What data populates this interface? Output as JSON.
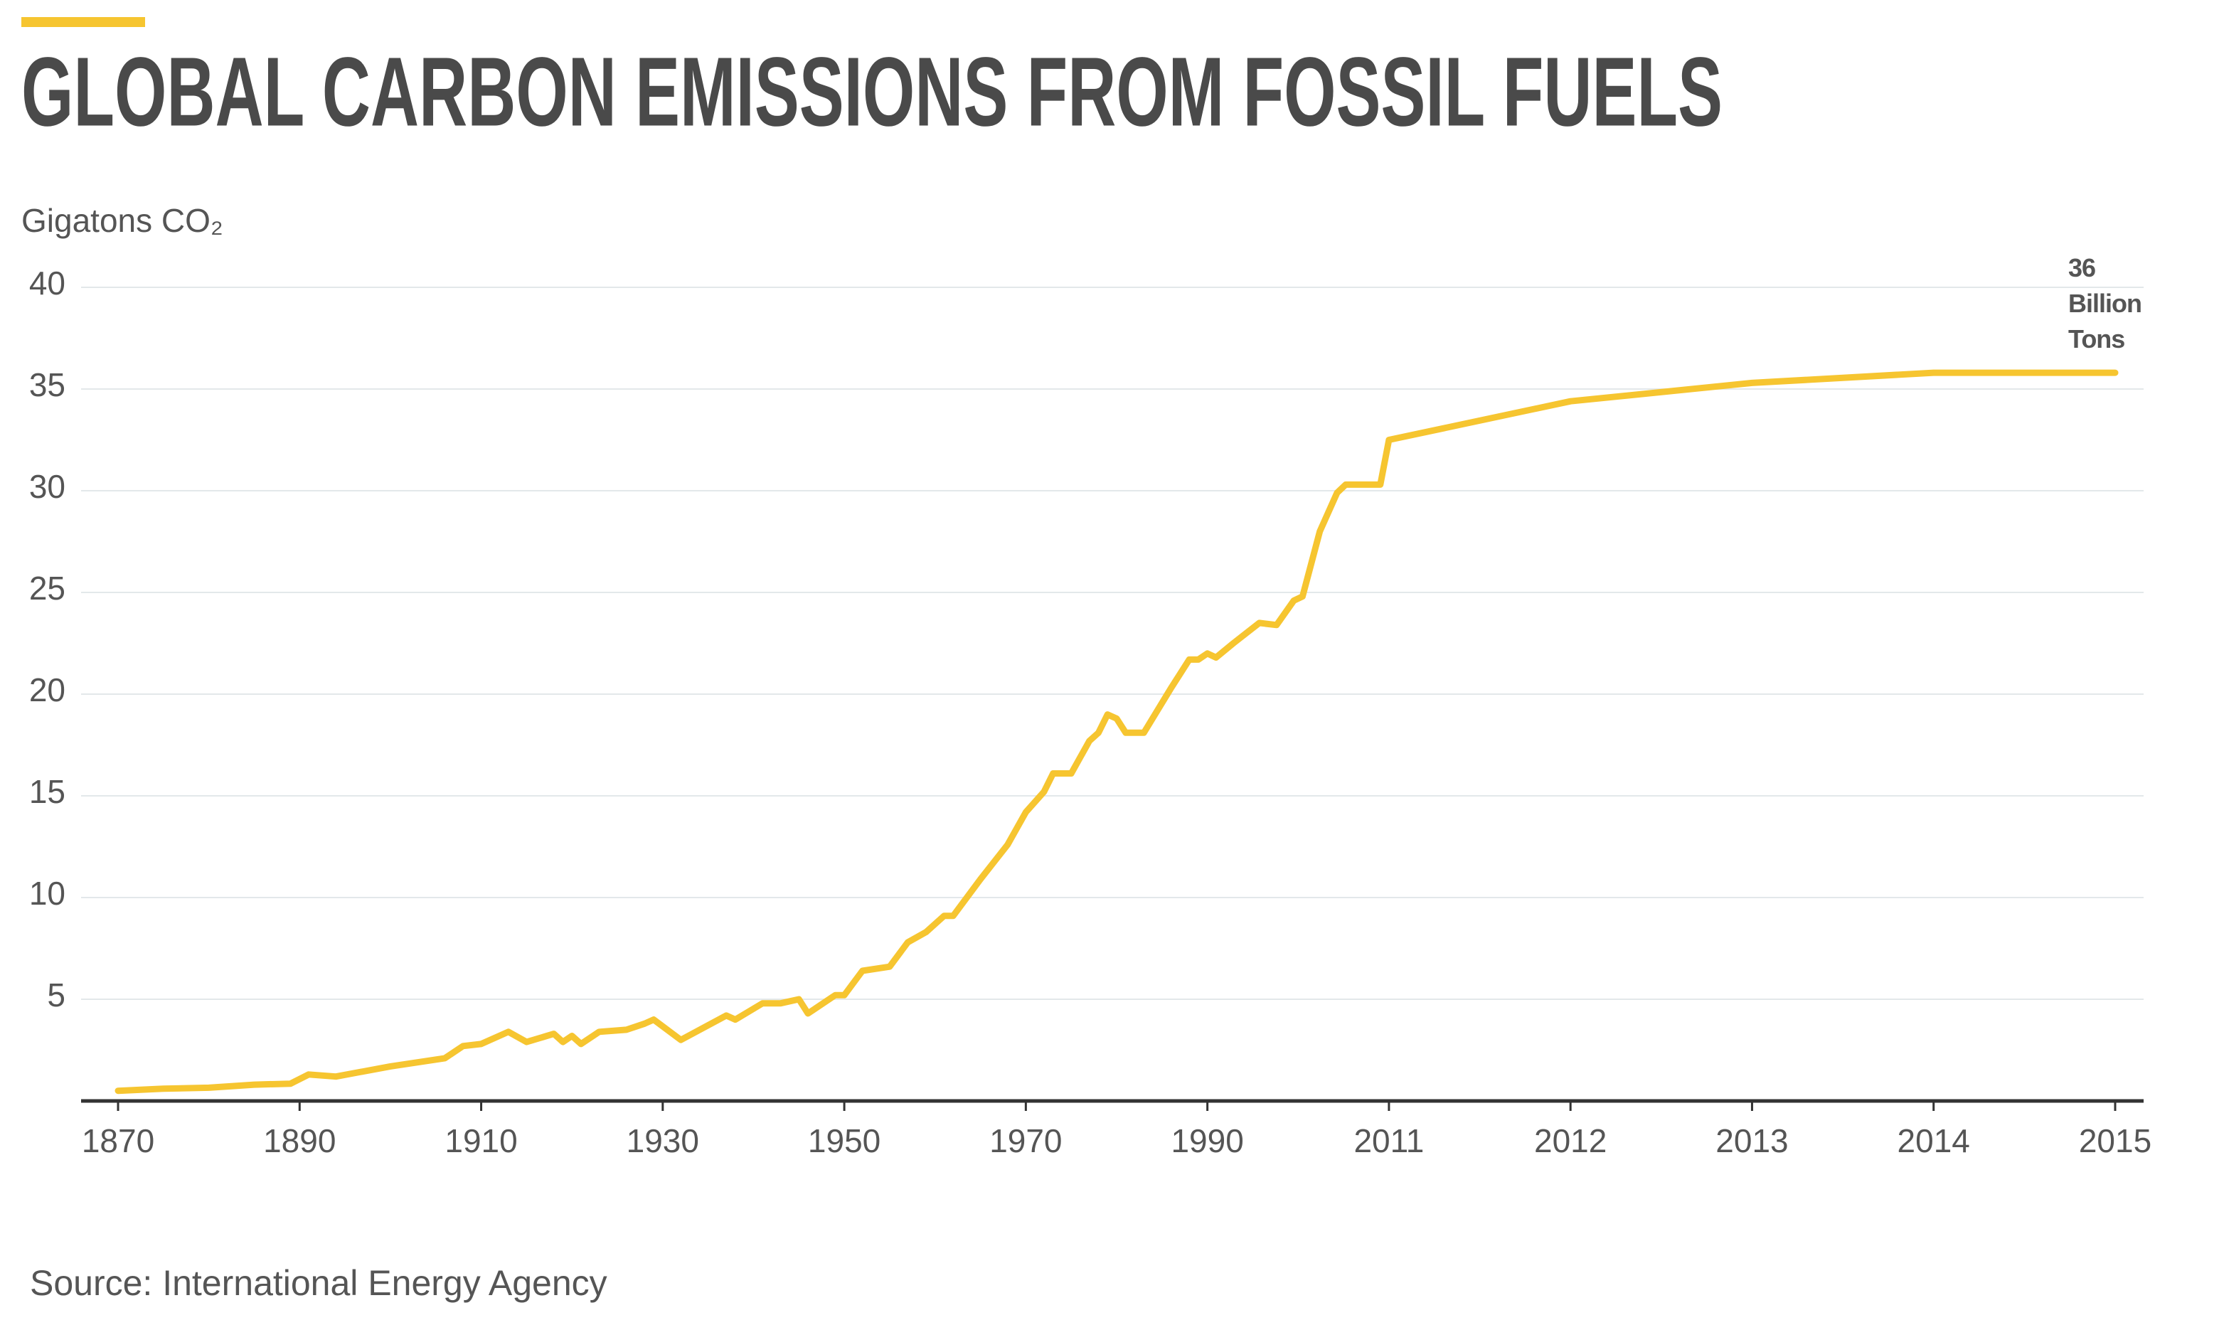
{
  "chart_data": {
    "type": "line",
    "title": "GLOBAL CARBON EMISSIONS FROM FOSSIL FUELS",
    "y_label": "Gigatons CO₂",
    "annotation": "36 Billion Tons",
    "source": "Source: International Energy Agency",
    "x": [
      1870,
      1875,
      1880,
      1885,
      1889,
      1891,
      1894,
      1900,
      1903,
      1906,
      1908,
      1910,
      1913,
      1915,
      1918,
      1919,
      1920,
      1921,
      1923,
      1926,
      1928,
      1929,
      1932,
      1937,
      1938,
      1941,
      1943,
      1945,
      1946,
      1949,
      1950,
      1952,
      1955,
      1957,
      1959,
      1961,
      1962,
      1965,
      1968,
      1970,
      1972,
      1973,
      1975,
      1977,
      1978,
      1979,
      1980,
      1981,
      1983,
      1986,
      1988,
      1989,
      1990,
      1991,
      1993,
      1996,
      1998,
      2000,
      2001,
      2003,
      2005,
      2006,
      2007,
      2009,
      2010,
      2011,
      2012,
      2013,
      2014,
      2015
    ],
    "series": [
      {
        "name": "Emissions",
        "color": "#f6c530",
        "values": [
          0.5,
          0.6,
          0.65,
          0.8,
          0.85,
          1.3,
          1.2,
          1.7,
          1.9,
          2.1,
          2.7,
          2.8,
          3.4,
          2.9,
          3.3,
          2.9,
          3.2,
          2.8,
          3.4,
          3.5,
          3.8,
          4.0,
          3.0,
          4.2,
          4.0,
          4.8,
          4.8,
          5.0,
          4.3,
          5.2,
          5.2,
          6.4,
          6.6,
          7.8,
          8.3,
          9.1,
          9.1,
          10.9,
          12.6,
          14.2,
          15.2,
          16.1,
          16.1,
          17.7,
          18.1,
          19.0,
          18.8,
          18.1,
          18.1,
          20.3,
          21.7,
          21.7,
          22.0,
          21.8,
          22.5,
          23.5,
          23.4,
          24.6,
          24.8,
          28.0,
          29.9,
          30.3,
          30.3,
          30.3,
          30.3,
          32.5,
          34.4,
          35.3,
          35.8,
          35.8
        ]
      }
    ],
    "xlim": [
      1870,
      2015
    ],
    "xticks": [
      1870,
      1890,
      1910,
      1930,
      1950,
      1970,
      1990,
      2011,
      2012,
      2013,
      2014,
      2015
    ],
    "ylim": [
      0,
      40
    ],
    "yticks": [
      5,
      10,
      15,
      20,
      25,
      30,
      35,
      40
    ],
    "grid": true
  }
}
